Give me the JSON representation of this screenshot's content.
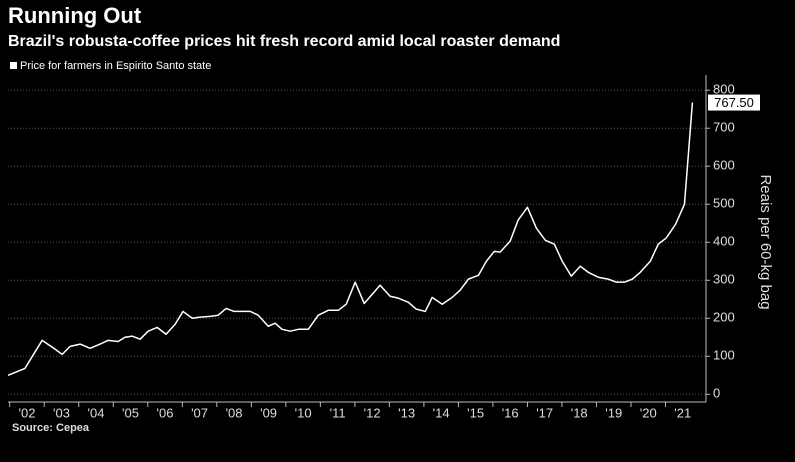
{
  "chart_data": {
    "type": "line",
    "title": "Running Out",
    "subtitle": "Brazil's robusta-coffee prices hit fresh record amid local roaster demand",
    "y_label": "Reais per 60-kg bag",
    "source": "Source: Cepea",
    "grid": true,
    "xlim": [
      2001.95,
      2022.0
    ],
    "ylim": [
      -15,
      840
    ],
    "yticks": [
      0,
      100,
      200,
      300,
      400,
      500,
      600,
      700,
      800
    ],
    "xticks": [
      {
        "value": 2002,
        "label": "'02"
      },
      {
        "value": 2003,
        "label": "'03"
      },
      {
        "value": 2004,
        "label": "'04"
      },
      {
        "value": 2005,
        "label": "'05"
      },
      {
        "value": 2006,
        "label": "'06"
      },
      {
        "value": 2007,
        "label": "'07"
      },
      {
        "value": 2008,
        "label": "'08"
      },
      {
        "value": 2009,
        "label": "'09"
      },
      {
        "value": 2010,
        "label": "'10"
      },
      {
        "value": 2011,
        "label": "'11"
      },
      {
        "value": 2012,
        "label": "'12"
      },
      {
        "value": 2013,
        "label": "'13"
      },
      {
        "value": 2014,
        "label": "'14"
      },
      {
        "value": 2015,
        "label": "'15"
      },
      {
        "value": 2016,
        "label": "'16"
      },
      {
        "value": 2017,
        "label": "'17"
      },
      {
        "value": 2018,
        "label": "'18"
      },
      {
        "value": 2019,
        "label": "'19"
      },
      {
        "value": 2020,
        "label": "'20"
      },
      {
        "value": 2021,
        "label": "'21"
      }
    ],
    "x": [
      2001.95,
      2002.44,
      2002.94,
      2003.23,
      2003.52,
      2003.75,
      2004.04,
      2004.33,
      2004.62,
      2004.85,
      2005.14,
      2005.34,
      2005.55,
      2005.78,
      2006.01,
      2006.27,
      2006.53,
      2006.79,
      2007.02,
      2007.29,
      2007.52,
      2007.81,
      2008.04,
      2008.27,
      2008.5,
      2008.73,
      2008.97,
      2009.2,
      2009.49,
      2009.69,
      2009.89,
      2010.13,
      2010.36,
      2010.65,
      2010.94,
      2011.23,
      2011.52,
      2011.75,
      2012.01,
      2012.27,
      2012.5,
      2012.73,
      2013.02,
      2013.26,
      2013.55,
      2013.78,
      2014.04,
      2014.24,
      2014.53,
      2014.82,
      2015.05,
      2015.29,
      2015.58,
      2015.81,
      2016.04,
      2016.21,
      2016.5,
      2016.73,
      2017.0,
      2017.26,
      2017.52,
      2017.78,
      2018.01,
      2018.27,
      2018.53,
      2018.76,
      2019.05,
      2019.34,
      2019.58,
      2019.81,
      2020.04,
      2020.27,
      2020.56,
      2020.79,
      2021.02,
      2021.29,
      2021.55,
      2021.78
    ],
    "series": [
      {
        "name": "Price for farmers in Espirito Santo state",
        "color": "#ffffff",
        "values": [
          50,
          68,
          142,
          124,
          105,
          126,
          132,
          121,
          132,
          142,
          139,
          150,
          153,
          145,
          166,
          176,
          158,
          184,
          218,
          200,
          203,
          205,
          208,
          226,
          218,
          218,
          218,
          208,
          179,
          187,
          171,
          166,
          171,
          171,
          208,
          221,
          221,
          237,
          295,
          239,
          263,
          287,
          258,
          253,
          242,
          224,
          218,
          255,
          237,
          255,
          274,
          303,
          313,
          350,
          376,
          374,
          403,
          458,
          492,
          437,
          405,
          395,
          350,
          311,
          337,
          321,
          308,
          303,
          295,
          295,
          303,
          321,
          350,
          395,
          411,
          447,
          500,
          767.5
        ]
      }
    ],
    "annotation": {
      "value": 767.5,
      "label": "767.50"
    }
  }
}
